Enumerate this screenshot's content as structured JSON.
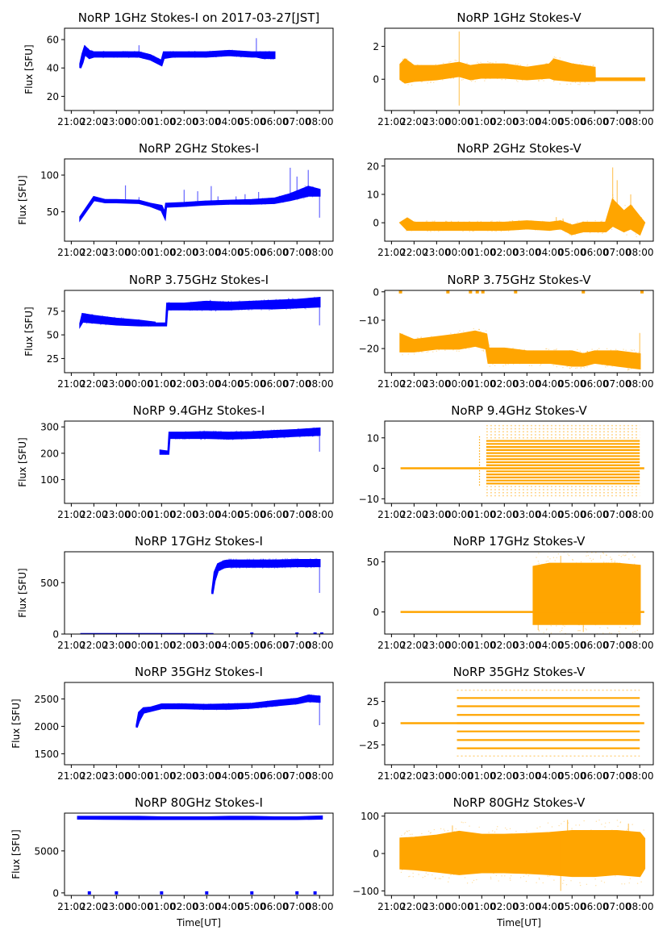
{
  "figure": {
    "x_axis_label": "Time[UT]",
    "y_axis_label": "Flux [SFU]"
  },
  "chart_data": [
    {
      "type": "scatter",
      "panel": "1GHz-I",
      "title": "NoRP 1GHz Stokes-I on 2017-03-27[JST]",
      "xlabel": "",
      "ylabel": "Flux [SFU]",
      "color": "#0000ff",
      "xlim_hours": [
        -3.3,
        8.6
      ],
      "ylim": [
        10,
        68
      ],
      "yticks": [
        20,
        40,
        60
      ],
      "xtick_labels": [
        "21:00",
        "22:00",
        "23:00",
        "00:00",
        "01:00",
        "02:00",
        "03:00",
        "04:00",
        "05:00",
        "06:00",
        "07:00",
        "08:00"
      ],
      "x_hours": [
        -2.6,
        -2.5,
        -2.4,
        -2.2,
        -2.0,
        -1.0,
        0.0,
        0.5,
        1.0,
        1.1,
        1.5,
        2.0,
        3.0,
        4.0,
        5.0,
        5.2,
        5.5,
        6.0
      ],
      "low": [
        40,
        44,
        50,
        47,
        48,
        48,
        48,
        46,
        42,
        47,
        48,
        48,
        48,
        49,
        48,
        48,
        47,
        47
      ],
      "high": [
        43,
        50,
        55,
        52,
        51,
        51,
        51,
        49,
        45,
        51,
        51,
        51,
        51,
        52,
        51,
        51,
        51,
        51
      ],
      "spikes": [
        [
          0.0,
          56
        ],
        [
          5.2,
          61
        ],
        [
          -2.4,
          56
        ]
      ]
    },
    {
      "type": "scatter",
      "panel": "1GHz-V",
      "title": "NoRP 1GHz Stokes-V",
      "xlabel": "",
      "ylabel": "",
      "color": "#ffa500",
      "xlim_hours": [
        -3.3,
        8.6
      ],
      "ylim": [
        -1.9,
        3.1
      ],
      "yticks": [
        0,
        2
      ],
      "xtick_labels": [
        "21:00",
        "22:00",
        "23:00",
        "00:00",
        "01:00",
        "02:00",
        "03:00",
        "04:00",
        "05:00",
        "06:00",
        "07:00",
        "08:00"
      ],
      "x_hours": [
        -2.6,
        -2.4,
        -2.0,
        -1.0,
        0.0,
        0.5,
        1.0,
        2.0,
        3.0,
        4.0,
        4.2,
        5.0,
        6.0,
        6.01,
        8.2
      ],
      "low": [
        0.0,
        -0.2,
        -0.1,
        0.0,
        0.2,
        0.0,
        0.1,
        0.1,
        0.0,
        0.1,
        0.0,
        -0.1,
        -0.1,
        -0.05,
        -0.05
      ],
      "high": [
        0.9,
        1.2,
        0.8,
        0.8,
        1.0,
        0.8,
        0.9,
        0.9,
        0.7,
        0.9,
        1.2,
        0.9,
        0.7,
        0.05,
        0.05
      ],
      "spikes": [
        [
          0.0,
          2.9
        ],
        [
          0.0,
          -1.6
        ]
      ]
    },
    {
      "type": "scatter",
      "panel": "2GHz-I",
      "title": "NoRP 2GHz Stokes-I",
      "xlabel": "",
      "ylabel": "Flux [SFU]",
      "color": "#0000ff",
      "xlim_hours": [
        -3.3,
        8.6
      ],
      "ylim": [
        10,
        122
      ],
      "yticks": [
        50,
        100
      ],
      "xtick_labels": [
        "21:00",
        "22:00",
        "23:00",
        "00:00",
        "01:00",
        "02:00",
        "03:00",
        "04:00",
        "05:00",
        "06:00",
        "07:00",
        "08:00"
      ],
      "x_hours": [
        -2.6,
        -2.0,
        -1.5,
        -1.0,
        0.0,
        0.5,
        1.0,
        1.15,
        1.2,
        2.0,
        3.0,
        4.0,
        5.0,
        6.0,
        6.7,
        7.5,
        8.0
      ],
      "low": [
        40,
        66,
        63,
        63,
        62,
        58,
        52,
        42,
        57,
        58,
        60,
        61,
        61,
        62,
        66,
        72,
        72
      ],
      "high": [
        43,
        70,
        66,
        66,
        65,
        61,
        58,
        48,
        61,
        62,
        64,
        65,
        66,
        68,
        74,
        84,
        80
      ],
      "spikes": [
        [
          -0.6,
          86
        ],
        [
          0.0,
          70
        ],
        [
          2.0,
          80
        ],
        [
          2.6,
          78
        ],
        [
          3.2,
          85
        ],
        [
          3.5,
          71
        ],
        [
          4.3,
          71
        ],
        [
          4.7,
          74
        ],
        [
          5.3,
          77
        ],
        [
          6.7,
          110
        ],
        [
          7.0,
          98
        ],
        [
          7.5,
          107
        ],
        [
          8.0,
          42
        ]
      ]
    },
    {
      "type": "scatter",
      "panel": "2GHz-V",
      "title": "NoRP 2GHz Stokes-V",
      "xlabel": "",
      "ylabel": "",
      "color": "#ffa500",
      "xlim_hours": [
        -3.3,
        8.6
      ],
      "ylim": [
        -6.5,
        22.5
      ],
      "yticks": [
        0,
        10,
        20
      ],
      "xtick_labels": [
        "21:00",
        "22:00",
        "23:00",
        "00:00",
        "01:00",
        "02:00",
        "03:00",
        "04:00",
        "05:00",
        "06:00",
        "07:00",
        "08:00"
      ],
      "x_hours": [
        -2.6,
        -2.3,
        -2.0,
        -1.0,
        0.0,
        1.0,
        2.0,
        3.0,
        4.0,
        4.5,
        5.0,
        5.5,
        6.0,
        6.5,
        6.8,
        7.3,
        7.6,
        8.0,
        8.2
      ],
      "low": [
        0,
        -2.5,
        -2.5,
        -2.5,
        -2.5,
        -2.5,
        -2.5,
        -2.0,
        -2.5,
        -2.0,
        -4.0,
        -3.0,
        -3.0,
        -3.0,
        -1.0,
        -3.0,
        -2.0,
        -4.0,
        0
      ],
      "high": [
        0,
        1.5,
        0,
        0,
        0,
        0,
        0,
        0.5,
        0,
        0.5,
        -1.0,
        0,
        0,
        0,
        8.0,
        4.0,
        6.0,
        2.0,
        0
      ],
      "spikes": [
        [
          6.8,
          19.5
        ],
        [
          7.0,
          15
        ],
        [
          7.6,
          10
        ],
        [
          4.3,
          2
        ],
        [
          4.6,
          1.5
        ]
      ]
    },
    {
      "type": "scatter",
      "panel": "3.75GHz-I",
      "title": "NoRP 3.75GHz Stokes-I",
      "xlabel": "",
      "ylabel": "Flux [SFU]",
      "color": "#0000ff",
      "xlim_hours": [
        -3.3,
        8.6
      ],
      "ylim": [
        10,
        97
      ],
      "yticks": [
        25,
        50,
        75
      ],
      "xtick_labels": [
        "21:00",
        "22:00",
        "23:00",
        "00:00",
        "01:00",
        "02:00",
        "03:00",
        "04:00",
        "05:00",
        "06:00",
        "07:00",
        "08:00"
      ],
      "x_hours": [
        -2.6,
        -2.5,
        -2.0,
        -1.0,
        0.0,
        0.7,
        0.71,
        1.2,
        1.25,
        2.0,
        3.0,
        4.0,
        5.0,
        6.0,
        7.0,
        8.0
      ],
      "low": [
        60,
        64,
        63,
        61,
        60,
        60,
        60,
        60,
        77,
        77,
        77,
        77,
        78,
        78,
        79,
        80
      ],
      "high": [
        62,
        72,
        70,
        67,
        65,
        63,
        62,
        62,
        83,
        83,
        85,
        84,
        85,
        86,
        87,
        89
      ],
      "spikes": [
        [
          0.95,
          61
        ],
        [
          8.0,
          60
        ]
      ]
    },
    {
      "type": "scatter",
      "panel": "3.75GHz-V",
      "title": "NoRP 3.75GHz Stokes-V",
      "xlabel": "",
      "ylabel": "",
      "color": "#ffa500",
      "xlim_hours": [
        -3.3,
        8.6
      ],
      "ylim": [
        -28.5,
        0.5
      ],
      "yticks": [
        -20,
        -10,
        0
      ],
      "xtick_labels": [
        "21:00",
        "22:00",
        "23:00",
        "00:00",
        "01:00",
        "02:00",
        "03:00",
        "04:00",
        "05:00",
        "06:00",
        "07:00",
        "08:00"
      ],
      "x_hours": [
        -2.6,
        -2.0,
        -1.0,
        0.0,
        0.7,
        0.71,
        1.2,
        1.3,
        2.0,
        3.0,
        4.0,
        5.0,
        5.5,
        6.0,
        7.0,
        8.0
      ],
      "low": [
        -21,
        -21,
        -20,
        -20,
        -19,
        -19,
        -20,
        -25,
        -25,
        -25,
        -25,
        -26,
        -26,
        -25,
        -26,
        -27
      ],
      "high": [
        -15,
        -17,
        -16,
        -15,
        -14,
        -14,
        -15,
        -20,
        -20,
        -21,
        -21,
        -21,
        -22,
        -21,
        -21,
        -22
      ],
      "spikes": [
        [
          -2.6,
          0
        ],
        [
          -0.5,
          0
        ],
        [
          0.5,
          0
        ],
        [
          0.8,
          0
        ],
        [
          1.05,
          0
        ],
        [
          2.5,
          0
        ],
        [
          5.5,
          0
        ],
        [
          8.1,
          0
        ],
        [
          0.7,
          -16.5
        ],
        [
          8.0,
          -14.5
        ]
      ]
    },
    {
      "type": "scatter",
      "panel": "9.4GHz-I",
      "title": "NoRP 9.4GHz Stokes-I",
      "xlabel": "",
      "ylabel": "Flux [SFU]",
      "color": "#0000ff",
      "xlim_hours": [
        -3.3,
        8.6
      ],
      "ylim": [
        10,
        322
      ],
      "yticks": [
        100,
        200,
        300
      ],
      "xtick_labels": [
        "21:00",
        "22:00",
        "23:00",
        "00:00",
        "01:00",
        "02:00",
        "03:00",
        "04:00",
        "05:00",
        "06:00",
        "07:00",
        "08:00"
      ],
      "x_hours": [
        0.95,
        1.3,
        1.35,
        2.0,
        3.0,
        4.0,
        5.0,
        6.0,
        7.0,
        8.0
      ],
      "low": [
        198,
        198,
        258,
        258,
        258,
        256,
        258,
        262,
        266,
        270
      ],
      "high": [
        210,
        206,
        278,
        278,
        280,
        278,
        280,
        284,
        288,
        294
      ],
      "spikes": [
        [
          8.0,
          206
        ]
      ]
    },
    {
      "type": "scatter",
      "panel": "9.4GHz-V",
      "title": "NoRP 9.4GHz Stokes-V",
      "xlabel": "",
      "ylabel": "",
      "color": "#ffa500",
      "xlim_hours": [
        -3.3,
        8.6
      ],
      "ylim": [
        -11.5,
        15.5
      ],
      "yticks": [
        -10,
        0,
        10
      ],
      "xtick_labels": [
        "21:00",
        "22:00",
        "23:00",
        "00:00",
        "01:00",
        "02:00",
        "03:00",
        "04:00",
        "05:00",
        "06:00",
        "07:00",
        "08:00"
      ],
      "bands": [
        -5,
        -4,
        -3,
        -2,
        -1,
        0,
        1,
        2,
        3,
        4,
        5,
        6,
        7,
        8,
        9
      ],
      "bands_x_hours": [
        1.2,
        8.0
      ],
      "baseline_x_hours": [
        -2.6,
        8.2
      ],
      "sparse_bands": [
        -9,
        -8,
        -7,
        -6,
        10,
        11,
        12,
        13,
        14
      ],
      "early_column_x_hours": 0.9
    },
    {
      "type": "scatter",
      "panel": "17GHz-I",
      "title": "NoRP 17GHz Stokes-I",
      "xlabel": "",
      "ylabel": "Flux [SFU]",
      "color": "#0000ff",
      "xlim_hours": [
        -3.3,
        8.6
      ],
      "ylim": [
        0,
        800
      ],
      "yticks": [
        0,
        500
      ],
      "xtick_labels": [
        "21:00",
        "22:00",
        "23:00",
        "00:00",
        "01:00",
        "02:00",
        "03:00",
        "04:00",
        "05:00",
        "06:00",
        "07:00",
        "08:00"
      ],
      "x_hours": [
        3.25,
        3.35,
        3.5,
        3.8,
        4.0,
        5.0,
        6.0,
        7.0,
        8.0
      ],
      "low": [
        390,
        520,
        620,
        650,
        655,
        655,
        655,
        660,
        660
      ],
      "high": [
        420,
        600,
        680,
        710,
        715,
        715,
        715,
        720,
        720
      ],
      "zero_line_x_hours": [
        -2.6,
        3.3
      ],
      "spikes": [
        [
          8.0,
          400
        ],
        [
          5.0,
          0
        ],
        [
          7.0,
          0
        ],
        [
          7.8,
          0
        ],
        [
          8.1,
          0
        ]
      ]
    },
    {
      "type": "scatter",
      "panel": "17GHz-V",
      "title": "NoRP 17GHz Stokes-V",
      "xlabel": "",
      "ylabel": "",
      "color": "#ffa500",
      "xlim_hours": [
        -3.3,
        8.6
      ],
      "ylim": [
        -22,
        60
      ],
      "yticks": [
        0,
        50
      ],
      "xtick_labels": [
        "21:00",
        "22:00",
        "23:00",
        "00:00",
        "01:00",
        "02:00",
        "03:00",
        "04:00",
        "05:00",
        "06:00",
        "07:00",
        "08:00"
      ],
      "x_hours": [
        3.3,
        4.0,
        5.0,
        6.0,
        7.0,
        8.0
      ],
      "low": [
        -12,
        -12,
        -12,
        -12,
        -12,
        -12
      ],
      "high": [
        45,
        48,
        48,
        48,
        48,
        46
      ],
      "baseline_x_hours": [
        -2.6,
        8.2
      ],
      "spikes": [
        [
          4.5,
          56
        ],
        [
          3.5,
          -18
        ],
        [
          5.5,
          -20
        ]
      ]
    },
    {
      "type": "scatter",
      "panel": "35GHz-I",
      "title": "NoRP 35GHz Stokes-I",
      "xlabel": "",
      "ylabel": "Flux [SFU]",
      "color": "#0000ff",
      "xlim_hours": [
        -3.3,
        8.6
      ],
      "ylim": [
        1300,
        2800
      ],
      "yticks": [
        1500,
        2000,
        2500
      ],
      "xtick_labels": [
        "21:00",
        "22:00",
        "23:00",
        "00:00",
        "01:00",
        "02:00",
        "03:00",
        "04:00",
        "05:00",
        "06:00",
        "07:00",
        "08:00"
      ],
      "x_hours": [
        -0.1,
        0.0,
        0.2,
        0.5,
        1.0,
        2.0,
        3.0,
        4.0,
        5.0,
        6.0,
        7.0,
        7.5,
        8.0
      ],
      "low": [
        1980,
        2100,
        2250,
        2280,
        2330,
        2330,
        2320,
        2320,
        2340,
        2380,
        2420,
        2460,
        2450
      ],
      "high": [
        2020,
        2250,
        2330,
        2340,
        2400,
        2400,
        2390,
        2400,
        2410,
        2460,
        2500,
        2560,
        2540
      ],
      "spikes": [
        [
          8.0,
          2020
        ]
      ]
    },
    {
      "type": "scatter",
      "panel": "35GHz-V",
      "title": "NoRP 35GHz Stokes-V",
      "xlabel": "",
      "ylabel": "",
      "color": "#ffa500",
      "xlim_hours": [
        -3.3,
        8.6
      ],
      "ylim": [
        -48,
        47
      ],
      "yticks": [
        -25,
        0,
        25
      ],
      "xtick_labels": [
        "21:00",
        "22:00",
        "23:00",
        "00:00",
        "01:00",
        "02:00",
        "03:00",
        "04:00",
        "05:00",
        "06:00",
        "07:00",
        "08:00"
      ],
      "bands": [
        -29,
        -19.5,
        -9.5,
        0,
        9.5,
        19.5,
        29
      ],
      "bands_x_hours": [
        -0.1,
        8.0
      ],
      "baseline_x_hours": [
        -2.6,
        8.2
      ],
      "sparse_bands": [
        -38,
        38
      ]
    },
    {
      "type": "scatter",
      "panel": "80GHz-I",
      "title": "NoRP 80GHz Stokes-I",
      "xlabel": "Time[UT]",
      "ylabel": "Flux [SFU]",
      "color": "#0000ff",
      "xlim_hours": [
        -3.3,
        8.6
      ],
      "ylim": [
        -300,
        9500
      ],
      "yticks": [
        0,
        5000
      ],
      "xtick_labels": [
        "21:00",
        "22:00",
        "23:00",
        "00:00",
        "01:00",
        "02:00",
        "03:00",
        "04:00",
        "05:00",
        "06:00",
        "07:00",
        "08:00"
      ],
      "x_hours": [
        -2.7,
        0.0,
        1.0,
        2.0,
        3.0,
        4.0,
        5.0,
        6.0,
        7.0,
        8.1
      ],
      "low": [
        8850,
        8800,
        8800,
        8800,
        8800,
        8800,
        8800,
        8800,
        8800,
        8850
      ],
      "high": [
        9050,
        9050,
        9000,
        9000,
        9000,
        9050,
        9050,
        9000,
        9000,
        9100
      ],
      "spikes": [
        [
          -2.2,
          0
        ],
        [
          -1.0,
          0
        ],
        [
          1.0,
          0
        ],
        [
          3.0,
          0
        ],
        [
          5.0,
          0
        ],
        [
          7.0,
          0
        ],
        [
          7.8,
          0
        ]
      ]
    },
    {
      "type": "scatter",
      "panel": "80GHz-V",
      "title": "NoRP 80GHz Stokes-V",
      "xlabel": "Time[UT]",
      "ylabel": "",
      "color": "#ffa500",
      "xlim_hours": [
        -3.3,
        8.6
      ],
      "ylim": [
        -112,
        108
      ],
      "yticks": [
        -100,
        0,
        100
      ],
      "xtick_labels": [
        "21:00",
        "22:00",
        "23:00",
        "00:00",
        "01:00",
        "02:00",
        "03:00",
        "04:00",
        "05:00",
        "06:00",
        "07:00",
        "08:00"
      ],
      "x_hours": [
        -2.6,
        -2.0,
        -1.0,
        0.0,
        1.0,
        2.0,
        3.0,
        4.0,
        5.0,
        6.0,
        7.0,
        8.0,
        8.2
      ],
      "low": [
        -40,
        -42,
        -48,
        -55,
        -50,
        -50,
        -52,
        -55,
        -60,
        -60,
        -55,
        -60,
        -40
      ],
      "high": [
        40,
        42,
        48,
        58,
        50,
        50,
        52,
        55,
        60,
        60,
        60,
        55,
        40
      ],
      "spikes": [
        [
          -0.3,
          75
        ],
        [
          4.8,
          90
        ],
        [
          4.5,
          -100
        ],
        [
          7.5,
          80
        ]
      ]
    }
  ]
}
